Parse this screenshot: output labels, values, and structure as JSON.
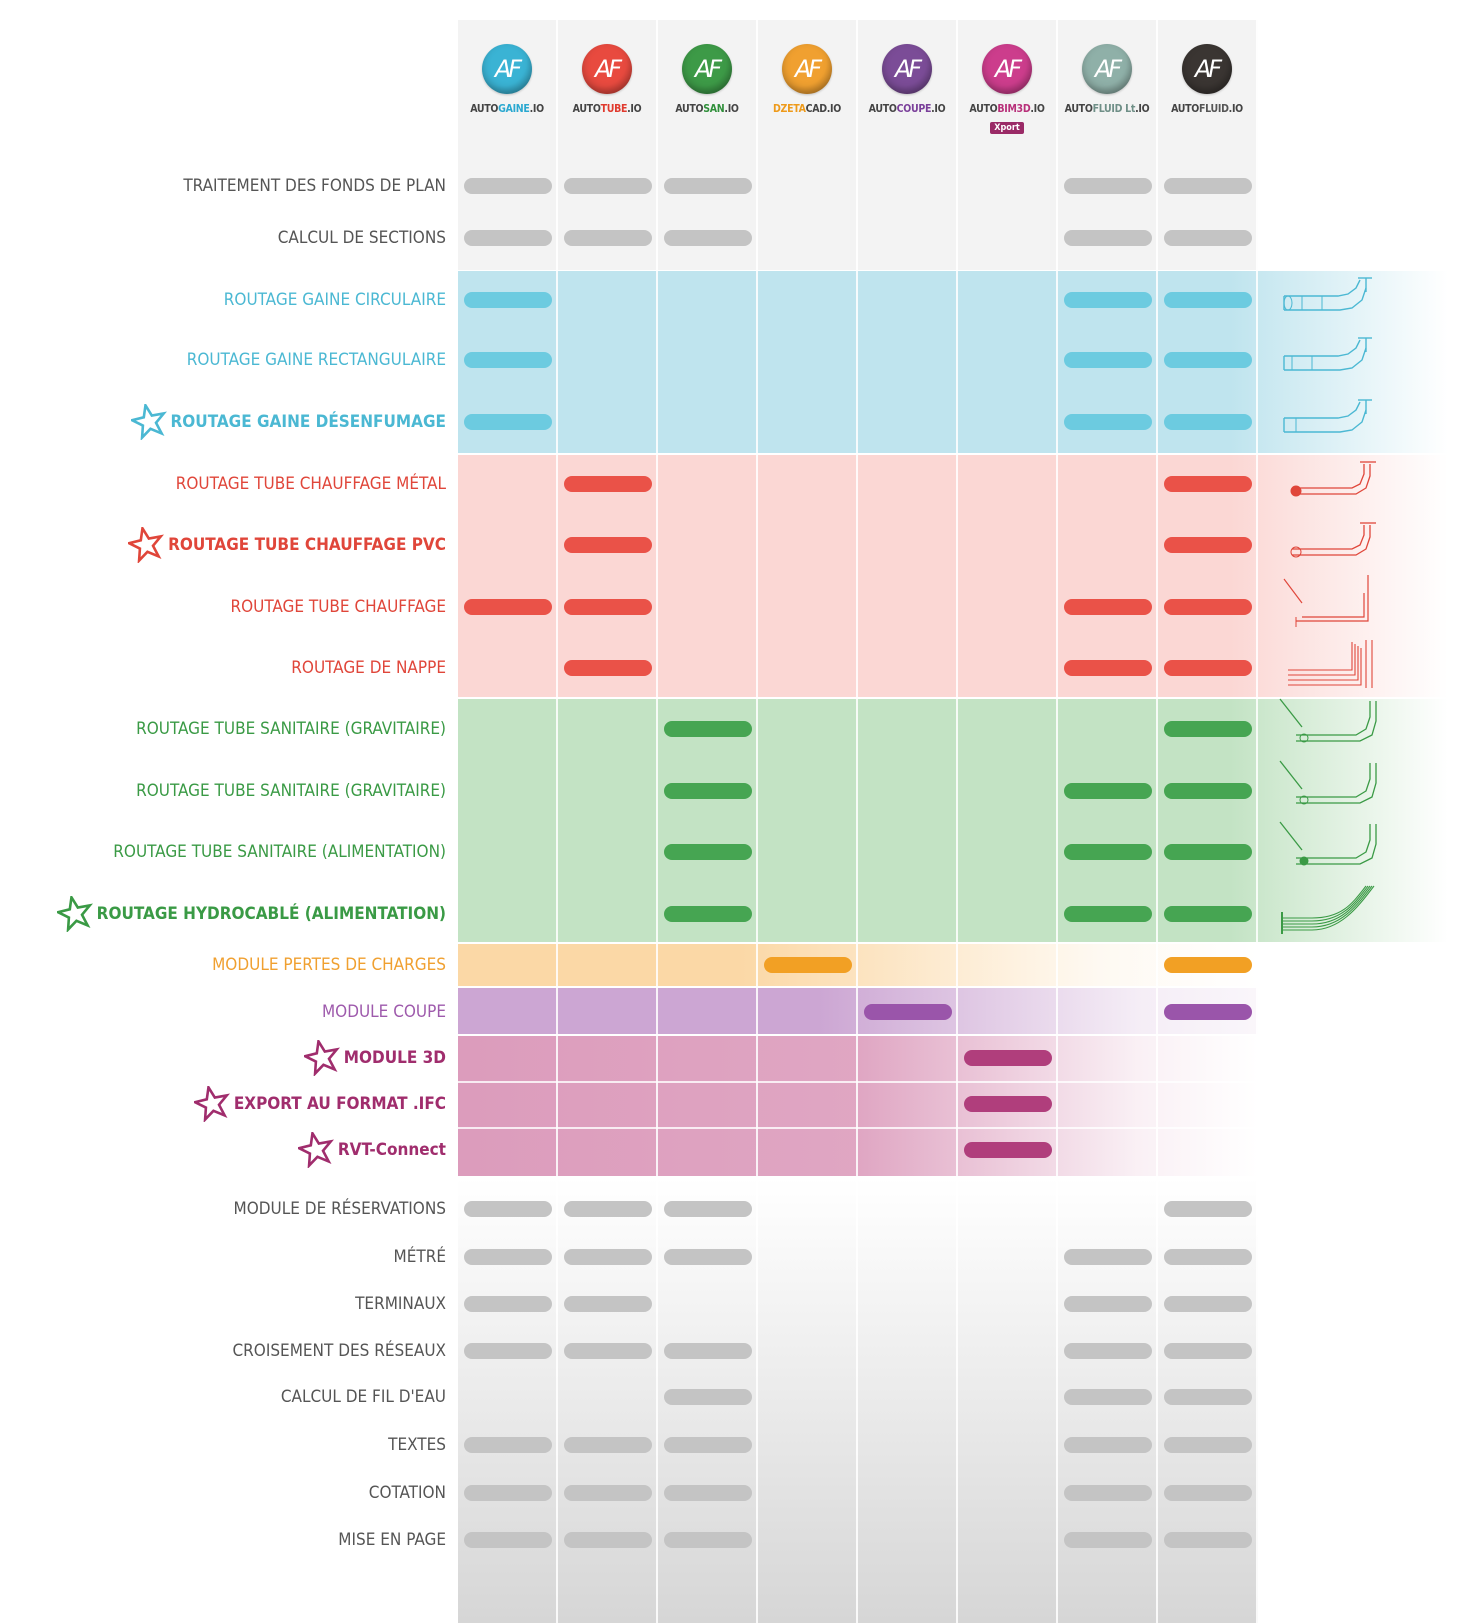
{
  "products": [
    {
      "prefix": "AUTO",
      "accent": "GAINE",
      "suffix": ".IO",
      "color": "#3ab3d4",
      "accent_color": "#2aa8d0",
      "extra": ""
    },
    {
      "prefix": "AUTO",
      "accent": "TUBE",
      "suffix": ".IO",
      "color": "#e84a3f",
      "accent_color": "#e03a2e",
      "extra": ""
    },
    {
      "prefix": "AUTO",
      "accent": "SAN",
      "suffix": ".IO",
      "color": "#3d9a47",
      "accent_color": "#2f8f3a",
      "extra": ""
    },
    {
      "prefix": "",
      "accent": "DZETA",
      "suffix": "CAD.IO",
      "color": "#f0a030",
      "accent_color": "#ee9a1a",
      "extra": ""
    },
    {
      "prefix": "AUTO",
      "accent": "COUPE",
      "suffix": ".IO",
      "color": "#7b4c97",
      "accent_color": "#7a3f9a",
      "extra": ""
    },
    {
      "prefix": "AUTO",
      "accent": "BIM3D",
      "suffix": ".IO",
      "color": "#cc3d8c",
      "accent_color": "#b8307a",
      "extra": "Xport"
    },
    {
      "prefix": "AUTO",
      "accent": "FLUID Lt",
      "suffix": ".IO",
      "color": "#8fb0a8",
      "accent_color": "#6f8f87",
      "extra": ""
    },
    {
      "prefix": "AUTO",
      "accent": "FLUID",
      "suffix": ".IO",
      "color": "#3a3532",
      "accent_color": "#555555",
      "extra": ""
    }
  ],
  "logo_text": "AF",
  "rows": [
    {
      "label": "TRAITEMENT DES FONDS DE PLAN",
      "group": "gray",
      "star": false,
      "bold": false,
      "cols": [
        1,
        1,
        1,
        0,
        0,
        0,
        1,
        1
      ]
    },
    {
      "label": "CALCUL DE SECTIONS",
      "group": "gray",
      "star": false,
      "bold": false,
      "cols": [
        1,
        1,
        1,
        0,
        0,
        0,
        1,
        1
      ]
    },
    {
      "label": "ROUTAGE GAINE CIRCULAIRE",
      "group": "blue",
      "star": false,
      "bold": false,
      "cols": [
        1,
        0,
        0,
        0,
        0,
        0,
        1,
        1
      ],
      "illus": "duct-round"
    },
    {
      "label": "ROUTAGE GAINE RECTANGULAIRE",
      "group": "blue",
      "star": false,
      "bold": false,
      "cols": [
        1,
        0,
        0,
        0,
        0,
        0,
        1,
        1
      ],
      "illus": "duct-rect"
    },
    {
      "label": "ROUTAGE GAINE DÉSENFUMAGE",
      "group": "blue",
      "star": true,
      "bold": true,
      "cols": [
        1,
        0,
        0,
        0,
        0,
        0,
        1,
        1
      ],
      "illus": "duct-smoke"
    },
    {
      "label": "ROUTAGE TUBE CHAUFFAGE MÉTAL",
      "group": "red",
      "star": false,
      "bold": false,
      "cols": [
        0,
        1,
        0,
        0,
        0,
        0,
        0,
        1
      ],
      "illus": "pipe-metal"
    },
    {
      "label": "ROUTAGE TUBE CHAUFFAGE PVC",
      "group": "red",
      "star": true,
      "bold": true,
      "cols": [
        0,
        1,
        0,
        0,
        0,
        0,
        0,
        1
      ],
      "illus": "pipe-pvc"
    },
    {
      "label": "ROUTAGE TUBE CHAUFFAGE",
      "group": "red",
      "star": false,
      "bold": false,
      "cols": [
        1,
        1,
        0,
        0,
        0,
        0,
        1,
        1
      ],
      "illus": "pipe-heat"
    },
    {
      "label": "ROUTAGE DE NAPPE",
      "group": "red",
      "star": false,
      "bold": false,
      "cols": [
        0,
        1,
        0,
        0,
        0,
        0,
        1,
        1
      ],
      "illus": "pipe-bundle"
    },
    {
      "label": "ROUTAGE TUBE SANITAIRE (GRAVITAIRE)",
      "group": "green",
      "star": false,
      "bold": false,
      "cols": [
        0,
        0,
        1,
        0,
        0,
        0,
        0,
        1
      ],
      "illus": "san-grav1"
    },
    {
      "label": "ROUTAGE TUBE SANITAIRE (GRAVITAIRE)",
      "group": "green",
      "star": false,
      "bold": false,
      "cols": [
        0,
        0,
        1,
        0,
        0,
        0,
        1,
        1
      ],
      "illus": "san-grav2"
    },
    {
      "label": "ROUTAGE TUBE SANITAIRE (ALIMENTATION)",
      "group": "green",
      "star": false,
      "bold": false,
      "cols": [
        0,
        0,
        1,
        0,
        0,
        0,
        1,
        1
      ],
      "illus": "san-feed"
    },
    {
      "label": "ROUTAGE HYDROCABLÉ (ALIMENTATION)",
      "group": "green",
      "star": true,
      "bold": true,
      "cols": [
        0,
        0,
        1,
        0,
        0,
        0,
        1,
        1
      ],
      "illus": "hydro"
    },
    {
      "label": "MODULE PERTES DE CHARGES",
      "group": "orange",
      "star": false,
      "bold": false,
      "cols": [
        0,
        0,
        0,
        1,
        0,
        0,
        0,
        1
      ]
    },
    {
      "label": "MODULE COUPE",
      "group": "purple",
      "star": false,
      "bold": false,
      "cols": [
        0,
        0,
        0,
        0,
        1,
        0,
        0,
        1
      ]
    },
    {
      "label": "MODULE 3D",
      "group": "magenta",
      "star": true,
      "bold": true,
      "cols": [
        0,
        0,
        0,
        0,
        0,
        1,
        0,
        0
      ]
    },
    {
      "label": "EXPORT AU FORMAT .IFC",
      "group": "magenta",
      "star": true,
      "bold": true,
      "cols": [
        0,
        0,
        0,
        0,
        0,
        1,
        0,
        0
      ]
    },
    {
      "label": "RVT-Connect",
      "group": "magenta",
      "star": true,
      "bold": true,
      "cols": [
        0,
        0,
        0,
        0,
        0,
        1,
        0,
        0
      ]
    },
    {
      "label": "MODULE DE RÉSERVATIONS",
      "group": "gray",
      "star": false,
      "bold": false,
      "cols": [
        1,
        1,
        1,
        0,
        0,
        0,
        0,
        1
      ]
    },
    {
      "label": "MÉTRÉ",
      "group": "gray",
      "star": false,
      "bold": false,
      "cols": [
        1,
        1,
        1,
        0,
        0,
        0,
        1,
        1
      ]
    },
    {
      "label": "TERMINAUX",
      "group": "gray",
      "star": false,
      "bold": false,
      "cols": [
        1,
        1,
        0,
        0,
        0,
        0,
        1,
        1
      ]
    },
    {
      "label": "CROISEMENT DES RÉSEAUX",
      "group": "gray",
      "star": false,
      "bold": false,
      "cols": [
        1,
        1,
        1,
        0,
        0,
        0,
        1,
        1
      ]
    },
    {
      "label": "CALCUL DE FIL D'EAU",
      "group": "gray",
      "star": false,
      "bold": false,
      "cols": [
        0,
        0,
        1,
        0,
        0,
        0,
        1,
        1
      ]
    },
    {
      "label": "TEXTES",
      "group": "gray",
      "star": false,
      "bold": false,
      "cols": [
        1,
        1,
        1,
        0,
        0,
        0,
        1,
        1
      ]
    },
    {
      "label": "COTATION",
      "group": "gray",
      "star": false,
      "bold": false,
      "cols": [
        1,
        1,
        1,
        0,
        0,
        0,
        1,
        1
      ]
    },
    {
      "label": "MISE EN PAGE",
      "group": "gray",
      "star": false,
      "bold": false,
      "cols": [
        1,
        1,
        1,
        0,
        0,
        0,
        1,
        1
      ]
    }
  ],
  "colors": {
    "gray": {
      "text": "#555555",
      "pill": "#c4c4c4"
    },
    "blue": {
      "text": "#4bb8d3",
      "pill": "#6ccbe0",
      "band": "#bfe4ee"
    },
    "red": {
      "text": "#e0463a",
      "pill": "#ea5248",
      "band": "#fbd7d4"
    },
    "green": {
      "text": "#3a9a45",
      "pill": "#46a552",
      "band": "#c3e3c4"
    },
    "orange": {
      "text": "#f0a030",
      "pill": "#f2a024",
      "band": "#fbd8a6"
    },
    "purple": {
      "text": "#9e5aac",
      "pill": "#9a55aa",
      "band": "#cca6d3"
    },
    "magenta": {
      "text": "#a02d6d",
      "pill": "#b03e7c",
      "band": "#dc9cbc"
    }
  }
}
